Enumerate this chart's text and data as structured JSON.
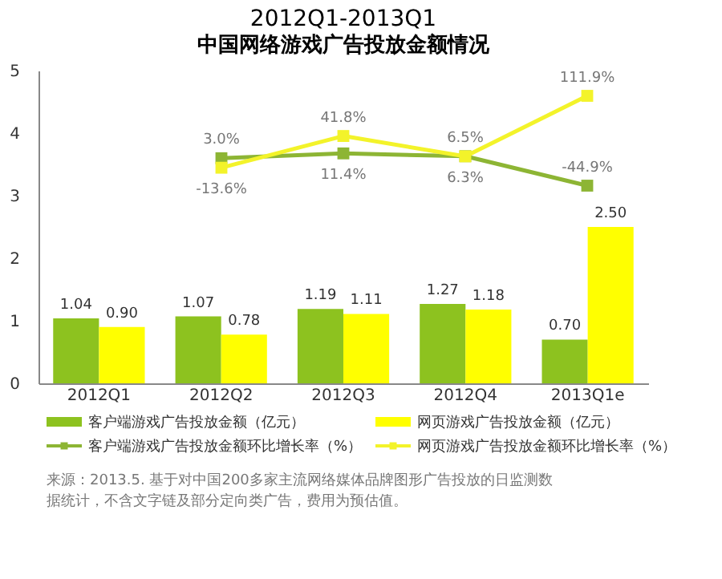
{
  "chart_data": {
    "type": "bar",
    "title": "2012Q1-2013Q1",
    "subtitle": "中国网络游戏广告投放金额情况",
    "categories": [
      "2012Q1",
      "2012Q2",
      "2012Q3",
      "2012Q4",
      "2013Q1e"
    ],
    "series": [
      {
        "name": "客户端游戏广告投放金额（亿元）",
        "color": "#8dc21f",
        "values": [
          1.04,
          1.07,
          1.19,
          1.27,
          0.7
        ],
        "value_labels": [
          "1.04",
          "1.07",
          "1.19",
          "1.27",
          "0.70"
        ]
      },
      {
        "name": "网页游戏广告投放金额（亿元）",
        "color": "#ffff00",
        "values": [
          0.9,
          0.78,
          1.11,
          1.18,
          2.5
        ],
        "value_labels": [
          "0.90",
          "0.78",
          "1.11",
          "1.18",
          "2.50"
        ]
      },
      {
        "name": "客户端游戏广告投放金额环比增长率（%）",
        "type": "line",
        "axis": "y2",
        "marker": "square",
        "color": "#8db534",
        "values": [
          null,
          3.0,
          11.4,
          6.5,
          -44.9
        ],
        "value_labels": [
          null,
          "3.0%",
          "11.4%",
          "6.5%",
          "-44.9%"
        ]
      },
      {
        "name": "网页游戏广告投放金额环比增长率（%）",
        "type": "line",
        "axis": "y2",
        "marker": "square",
        "color": "#f3f32a",
        "values": [
          null,
          -13.6,
          41.8,
          6.3,
          111.9
        ],
        "value_labels": [
          null,
          "-13.6%",
          "41.8%",
          "6.3%",
          "111.9%"
        ]
      }
    ],
    "ylim": [
      0,
      5
    ],
    "yticks": [
      0,
      1,
      2,
      3,
      4,
      5
    ],
    "y2lim": [
      -390,
      156
    ],
    "grid": false,
    "legend": "bottom",
    "annotations": [
      "来源：2013.5. 基于对中国200多家主流网络媒体品牌图形广告投放的日监测数据统计，不含文字链及部分定向类广告，费用为预估值。"
    ]
  }
}
